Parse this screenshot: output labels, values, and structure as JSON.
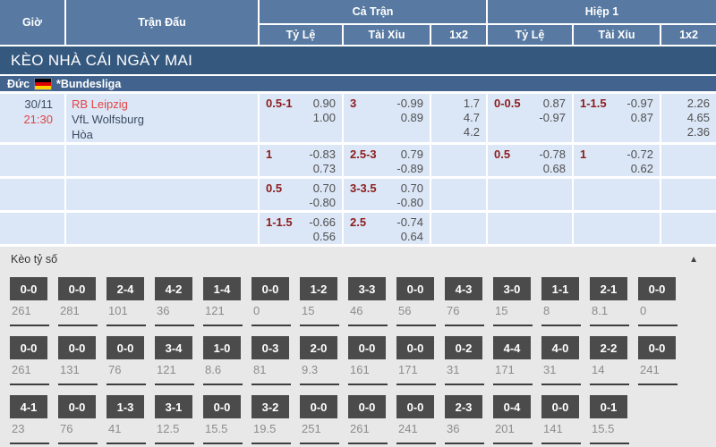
{
  "header": {
    "col_time": "Giờ",
    "col_match": "Trận Đấu",
    "group_full": "Cả Trận",
    "group_half": "Hiệp 1",
    "sub_odds": "Tỷ Lệ",
    "sub_ou": "Tài Xỉu",
    "sub_1x2": "1x2"
  },
  "banner": {
    "title": "KÈO NHÀ CÁI NGÀY MAI"
  },
  "league": {
    "country": "Đức",
    "name": "*Bundesliga",
    "flag_colors": [
      "#000000",
      "#dd0000",
      "#ffce00"
    ]
  },
  "match": {
    "date": "30/11",
    "time": "21:30",
    "home": "RB Leipzig",
    "away": "VfL Wolfsburg",
    "draw_label": "Hòa"
  },
  "odds": {
    "rows": [
      {
        "ft_hdp": "0.5-1",
        "ft_hdp_odds": [
          "0.90",
          "1.00"
        ],
        "ft_ou": "3",
        "ft_ou_odds": [
          "-0.99",
          "0.89"
        ],
        "ft_1x2": [
          "1.7",
          "4.7",
          "4.2"
        ],
        "h1_hdp": "0-0.5",
        "h1_hdp_odds": [
          "0.87",
          "-0.97"
        ],
        "h1_ou": "1-1.5",
        "h1_ou_odds": [
          "-0.97",
          "0.87"
        ],
        "h1_1x2": [
          "2.26",
          "4.65",
          "2.36"
        ]
      },
      {
        "ft_hdp": "1",
        "ft_hdp_odds": [
          "-0.83",
          "0.73"
        ],
        "ft_ou": "2.5-3",
        "ft_ou_odds": [
          "0.79",
          "-0.89"
        ],
        "h1_hdp": "0.5",
        "h1_hdp_odds": [
          "-0.78",
          "0.68"
        ],
        "h1_ou": "1",
        "h1_ou_odds": [
          "-0.72",
          "0.62"
        ]
      },
      {
        "ft_hdp": "0.5",
        "ft_hdp_odds": [
          "0.70",
          "-0.80"
        ],
        "ft_ou": "3-3.5",
        "ft_ou_odds": [
          "0.70",
          "-0.80"
        ]
      },
      {
        "ft_hdp": "1-1.5",
        "ft_hdp_odds": [
          "-0.66",
          "0.56"
        ],
        "ft_ou": "2.5",
        "ft_ou_odds": [
          "-0.74",
          "0.64"
        ]
      }
    ]
  },
  "score_section": {
    "title": "Kèo tỷ số",
    "collapse_icon": "▲",
    "rows": [
      [
        {
          "score": "0-0",
          "value": "261"
        },
        {
          "score": "0-0",
          "value": "281"
        },
        {
          "score": "2-4",
          "value": "101"
        },
        {
          "score": "4-2",
          "value": "36"
        },
        {
          "score": "1-4",
          "value": "121"
        },
        {
          "score": "0-0",
          "value": "0"
        },
        {
          "score": "1-2",
          "value": "15"
        },
        {
          "score": "3-3",
          "value": "46"
        },
        {
          "score": "0-0",
          "value": "56"
        },
        {
          "score": "4-3",
          "value": "76"
        },
        {
          "score": "3-0",
          "value": "15"
        },
        {
          "score": "1-1",
          "value": "8"
        },
        {
          "score": "2-1",
          "value": "8.1"
        },
        {
          "score": "0-0",
          "value": "0"
        }
      ],
      [
        {
          "score": "0-0",
          "value": "261"
        },
        {
          "score": "0-0",
          "value": "131"
        },
        {
          "score": "0-0",
          "value": "76"
        },
        {
          "score": "3-4",
          "value": "121"
        },
        {
          "score": "1-0",
          "value": "8.6"
        },
        {
          "score": "0-3",
          "value": "81"
        },
        {
          "score": "2-0",
          "value": "9.3"
        },
        {
          "score": "0-0",
          "value": "161"
        },
        {
          "score": "0-0",
          "value": "171"
        },
        {
          "score": "0-2",
          "value": "31"
        },
        {
          "score": "4-4",
          "value": "171"
        },
        {
          "score": "4-0",
          "value": "31"
        },
        {
          "score": "2-2",
          "value": "14"
        },
        {
          "score": "0-0",
          "value": "241"
        }
      ],
      [
        {
          "score": "4-1",
          "value": "23"
        },
        {
          "score": "0-0",
          "value": "76"
        },
        {
          "score": "1-3",
          "value": "41"
        },
        {
          "score": "3-1",
          "value": "12.5"
        },
        {
          "score": "0-0",
          "value": "15.5"
        },
        {
          "score": "3-2",
          "value": "19.5"
        },
        {
          "score": "0-0",
          "value": "251"
        },
        {
          "score": "0-0",
          "value": "261"
        },
        {
          "score": "0-0",
          "value": "241"
        },
        {
          "score": "2-3",
          "value": "36"
        },
        {
          "score": "0-4",
          "value": "201"
        },
        {
          "score": "0-0",
          "value": "141"
        },
        {
          "score": "0-1",
          "value": "15.5"
        }
      ]
    ]
  },
  "colors": {
    "header_blue": "#587aa2",
    "banner_blue": "#35587f",
    "league_blue": "#41638d",
    "row_light_blue": "#dbe7f7",
    "handicap_maroon": "#8c1c1c",
    "accent_red": "#e24343",
    "score_box_dark": "#4b4b4b",
    "section_gray": "#e8e8e8"
  }
}
